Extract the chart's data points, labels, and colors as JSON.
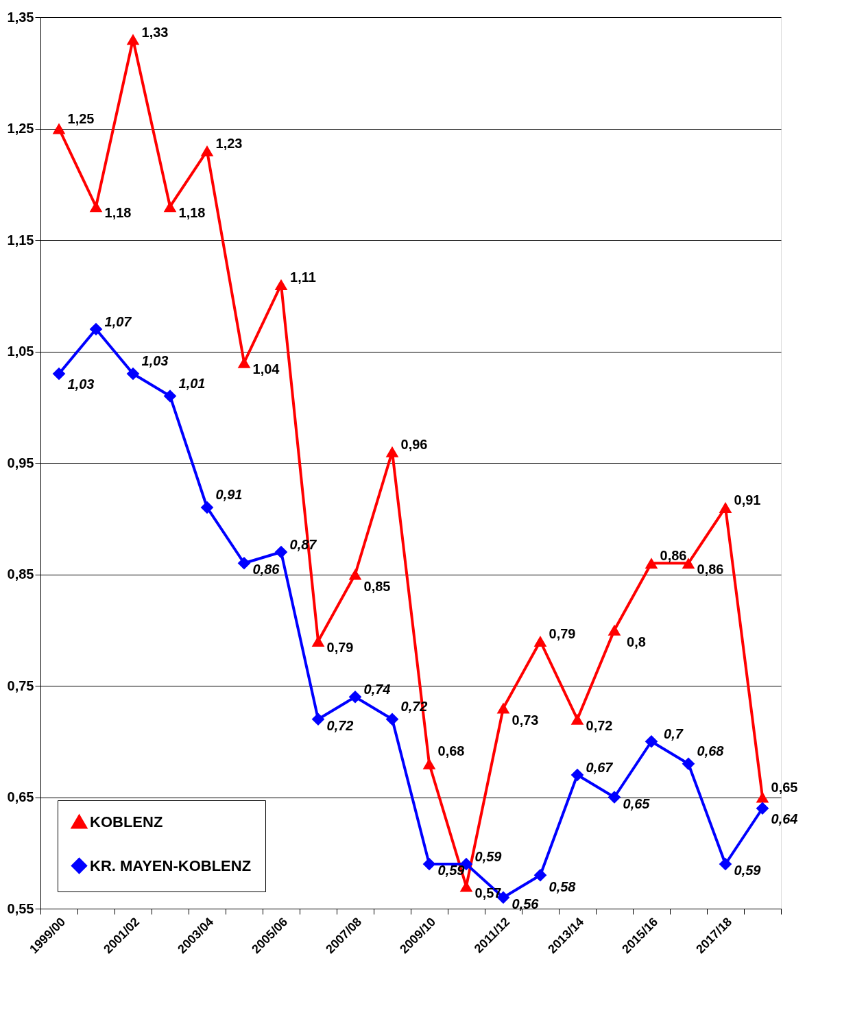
{
  "chart_data": {
    "type": "line",
    "categories": [
      "1999/00",
      null,
      "2001/02",
      null,
      "2003/04",
      null,
      "2005/06",
      null,
      "2007/08",
      null,
      "2009/10",
      null,
      "2011/12",
      null,
      "2013/14",
      null,
      "2015/16",
      null,
      "2017/18",
      null
    ],
    "series": [
      {
        "name": "KOBLENZ",
        "color": "#ff0000",
        "marker": "triangle",
        "values": [
          1.25,
          1.18,
          1.33,
          1.18,
          1.23,
          1.04,
          1.11,
          0.79,
          0.85,
          0.96,
          0.68,
          0.57,
          0.73,
          0.79,
          0.72,
          0.8,
          0.86,
          0.86,
          0.91,
          0.65
        ],
        "value_labels": [
          "1,25",
          "1,18",
          "1,33",
          "1,18",
          "1,23",
          "1,04",
          "1,11",
          "0,79",
          "0,85",
          "0,96",
          "0,68",
          "0,57",
          "0,73",
          "0,79",
          "0,72",
          "0,8",
          "0,86",
          "0,86",
          "0,91",
          "0,65"
        ]
      },
      {
        "name": "KR. MAYEN-KOBLENZ",
        "color": "#0000ff",
        "marker": "diamond",
        "values": [
          1.03,
          1.07,
          1.03,
          1.01,
          0.91,
          0.86,
          0.87,
          0.72,
          0.74,
          0.72,
          0.59,
          0.59,
          0.56,
          0.58,
          0.67,
          0.65,
          0.7,
          0.68,
          0.59,
          0.64
        ],
        "value_labels": [
          "1,03",
          "1,07",
          "1,03",
          "1,01",
          "0,91",
          "0,86",
          "0,87",
          "0,72",
          "0,74",
          "0,72",
          "0,59",
          "0,59",
          "0,56",
          "0,58",
          "0,67",
          "0,65",
          "0,7",
          "0,68",
          "0,59",
          "0,64"
        ]
      }
    ],
    "ylim": [
      0.55,
      1.35
    ],
    "yticks": [
      {
        "value": 0.55,
        "label": "0,55"
      },
      {
        "value": 0.65,
        "label": "0,65"
      },
      {
        "value": 0.75,
        "label": "0,75"
      },
      {
        "value": 0.85,
        "label": "0,85"
      },
      {
        "value": 0.95,
        "label": "0,95"
      },
      {
        "value": 1.05,
        "label": "1,05"
      },
      {
        "value": 1.15,
        "label": "1,15"
      },
      {
        "value": 1.25,
        "label": "1,25"
      },
      {
        "value": 1.35,
        "label": "1,35"
      }
    ],
    "grid": "y",
    "legend": "bottom left",
    "line_style": "solid"
  }
}
